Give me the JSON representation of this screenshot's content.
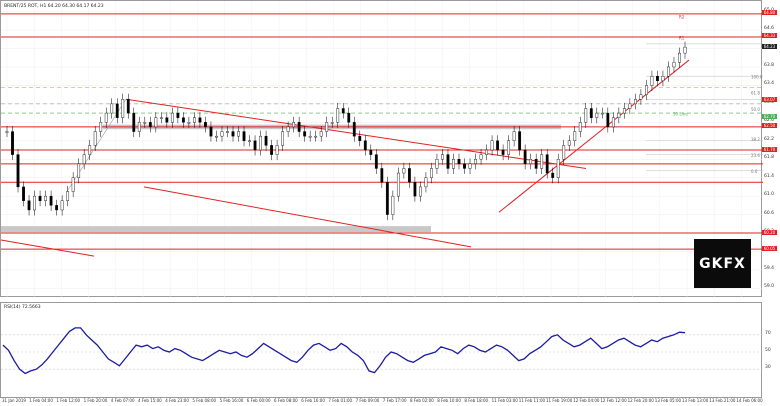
{
  "chart": {
    "header": "BRENT/25 ROT, H1  64.20 64.30 64.17 64.23",
    "rsi_header": "RSI(14) 72.5663",
    "logo_text": "GKFX",
    "colors": {
      "resistance": "#e32121",
      "trendline": "#e32121",
      "zone": "#c8c8c8",
      "rsi_line": "#1a1aa6",
      "fib_orange": "#f5a623",
      "fib_green": "#4caf50",
      "candle": "#000000"
    },
    "price_ticks": [
      "65.0",
      "64.6",
      "64.2",
      "63.8",
      "63.4",
      "63.0",
      "62.6",
      "62.2",
      "61.8",
      "61.4",
      "61.0",
      "60.6",
      "60.2",
      "59.8",
      "59.4",
      "59.0"
    ],
    "price_tags": [
      {
        "text": "64.80",
        "color": "#e32121"
      },
      {
        "text": "64.33",
        "color": "#e32121"
      },
      {
        "text": "64.23",
        "color": "#222222"
      },
      {
        "text": "63.07",
        "color": "#e32121"
      },
      {
        "text": "62.70",
        "color": "#4caf50"
      },
      {
        "text": "62.50",
        "color": "#e32121"
      },
      {
        "text": "61.70",
        "color": "#e32121"
      },
      {
        "text": "60.20",
        "color": "#e32121"
      },
      {
        "text": "60.05",
        "color": "#e32121"
      }
    ],
    "zone_labels": [
      "R2",
      "R1",
      "100.0",
      "61.8",
      "50.0",
      "38.2",
      "23.6",
      "0.0"
    ],
    "fib_green_label": "50 Line",
    "rsi_ticks": [
      "70",
      "50",
      "30"
    ],
    "time_labels": [
      "31 Jan 2019",
      "1 Feb 04:00",
      "1 Feb 12:00",
      "1 Feb 20:00",
      "4 Feb 07:00",
      "4 Feb 15:00",
      "4 Feb 23:00",
      "5 Feb 08:00",
      "5 Feb 16:00",
      "6 Feb 00:00",
      "6 Feb 08:00",
      "6 Feb 16:00",
      "7 Feb 01:00",
      "7 Feb 09:00",
      "7 Feb 17:00",
      "8 Feb 02:00",
      "8 Feb 10:00",
      "8 Feb 18:00",
      "11 Feb 03:00",
      "11 Feb 11:00",
      "11 Feb 19:00",
      "12 Feb 04:00",
      "12 Feb 12:00",
      "12 Feb 20:00",
      "13 Feb 05:00",
      "13 Feb 13:00",
      "13 Feb 21:00",
      "14 Feb 06:00"
    ],
    "candle_closes": [
      62.4,
      61.9,
      61.2,
      60.9,
      60.7,
      61.0,
      60.9,
      61.0,
      60.8,
      60.7,
      60.9,
      61.1,
      61.4,
      61.7,
      61.9,
      62.1,
      62.4,
      62.6,
      62.8,
      63.0,
      62.7,
      63.1,
      62.8,
      62.4,
      62.6,
      62.6,
      62.5,
      62.7,
      62.7,
      62.6,
      62.8,
      62.7,
      62.6,
      62.6,
      62.7,
      62.6,
      62.5,
      62.3,
      62.3,
      62.4,
      62.4,
      62.3,
      62.4,
      62.2,
      62.2,
      62.0,
      62.3,
      62.1,
      61.9,
      62.1,
      62.4,
      62.5,
      62.6,
      62.4,
      62.3,
      62.3,
      62.3,
      62.4,
      62.6,
      62.6,
      62.9,
      62.8,
      62.6,
      62.3,
      62.2,
      62.0,
      61.9,
      61.6,
      61.3,
      60.6,
      61.0,
      61.5,
      61.6,
      61.3,
      61.0,
      61.2,
      61.4,
      61.6,
      61.8,
      61.9,
      61.6,
      61.8,
      61.7,
      61.6,
      61.7,
      61.8,
      61.9,
      62.0,
      62.2,
      62.0,
      61.9,
      62.2,
      62.4,
      62.0,
      61.7,
      61.8,
      61.6,
      61.9,
      61.5,
      61.4,
      61.8,
      62.1,
      62.2,
      62.4,
      62.6,
      62.9,
      62.7,
      62.8,
      62.8,
      62.5,
      62.7,
      62.8,
      62.9,
      63.0,
      63.1,
      63.2,
      63.4,
      63.6,
      63.5,
      63.6,
      63.8,
      63.9,
      64.1,
      64.23
    ],
    "rsi_values": [
      58,
      52,
      40,
      30,
      25,
      28,
      30,
      35,
      42,
      50,
      58,
      66,
      74,
      78,
      78,
      70,
      64,
      58,
      50,
      42,
      38,
      34,
      42,
      50,
      58,
      56,
      58,
      54,
      56,
      52,
      50,
      54,
      52,
      48,
      44,
      42,
      40,
      44,
      48,
      52,
      50,
      48,
      50,
      46,
      44,
      48,
      54,
      60,
      56,
      52,
      48,
      44,
      40,
      38,
      44,
      52,
      58,
      60,
      56,
      52,
      54,
      60,
      56,
      50,
      46,
      40,
      28,
      26,
      34,
      44,
      50,
      48,
      44,
      40,
      38,
      42,
      46,
      48,
      50,
      56,
      54,
      52,
      48,
      54,
      58,
      56,
      52,
      50,
      54,
      58,
      56,
      52,
      46,
      40,
      42,
      48,
      52,
      56,
      62,
      68,
      70,
      64,
      60,
      56,
      58,
      62,
      66,
      60,
      54,
      56,
      60,
      64,
      66,
      62,
      58,
      56,
      60,
      64,
      62,
      66,
      68,
      70,
      73,
      72.5
    ]
  }
}
